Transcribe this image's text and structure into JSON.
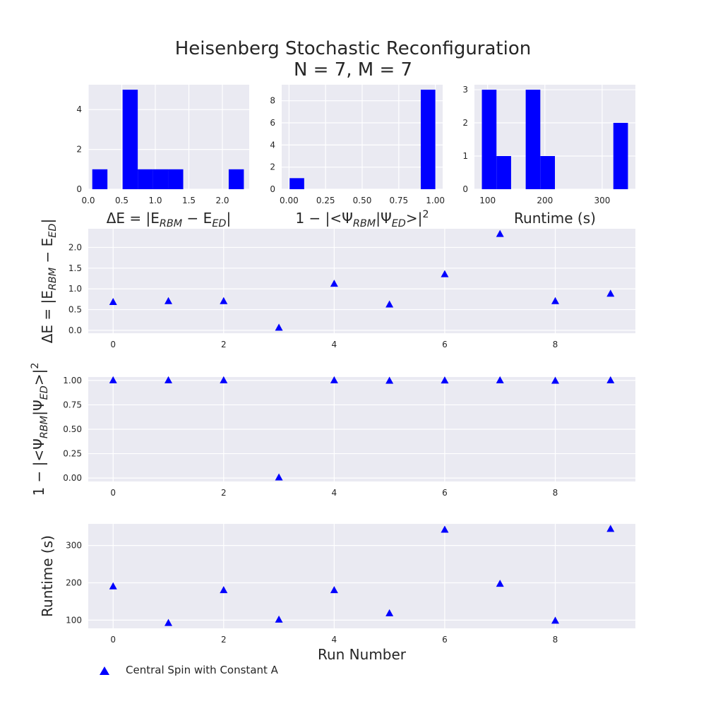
{
  "figure": {
    "title_line1": "Heisenberg Stochastic Reconfiguration",
    "title_line2": "N = 7, M = 7",
    "legend_label": "Central Spin with Constant A",
    "marker_color": "#0000ff",
    "panel_bg": "#eaeaf2"
  },
  "chart_data": [
    {
      "id": "hist-energy",
      "type": "bar",
      "xlabel": "ΔE = |E_RBM − E_ED|",
      "bin_edges": [
        0.06,
        0.286,
        0.512,
        0.738,
        0.964,
        1.19,
        1.416,
        1.642,
        1.868,
        2.094,
        2.32
      ],
      "counts": [
        1,
        0,
        5,
        1,
        1,
        1,
        0,
        0,
        0,
        1
      ],
      "xlim": [
        0.0,
        2.4
      ],
      "ylim": [
        0,
        5.25
      ],
      "xticks": [
        "0.0",
        "0.5",
        "1.0",
        "1.5",
        "2.0"
      ],
      "yticks": [
        "0",
        "2",
        "4"
      ]
    },
    {
      "id": "hist-overlap",
      "type": "bar",
      "xlabel": "1 − |<Ψ_RBM|Ψ_ED>|²",
      "bin_edges": [
        0.004,
        0.1036,
        0.2032,
        0.3028,
        0.4024,
        0.502,
        0.6016,
        0.7012,
        0.8008,
        0.9004,
        1.0
      ],
      "counts": [
        1,
        0,
        0,
        0,
        0,
        0,
        0,
        0,
        0,
        9
      ],
      "xlim": [
        -0.05,
        1.05
      ],
      "ylim": [
        0,
        9.45
      ],
      "xticks": [
        "0.00",
        "0.25",
        "0.50",
        "0.75",
        "1.00"
      ],
      "yticks": [
        "0",
        "2",
        "4",
        "6",
        "8"
      ]
    },
    {
      "id": "hist-runtime",
      "type": "bar",
      "xlabel": "Runtime (s)",
      "bin_edges": [
        90,
        115.5,
        141,
        166.5,
        192,
        217.5,
        243,
        268.5,
        294,
        319.5,
        345
      ],
      "counts": [
        3,
        1,
        0,
        3,
        1,
        0,
        0,
        0,
        0,
        2
      ],
      "xlim": [
        77,
        358
      ],
      "ylim": [
        0,
        3.15
      ],
      "xticks": [
        "100",
        "200",
        "300"
      ],
      "yticks": [
        "0",
        "1",
        "2",
        "3"
      ]
    },
    {
      "id": "scatter-energy",
      "type": "scatter",
      "series": [
        {
          "name": "Central Spin with Constant A",
          "x": [
            0,
            1,
            2,
            3,
            4,
            5,
            6,
            7,
            8,
            9
          ],
          "y": [
            0.68,
            0.7,
            0.7,
            0.06,
            1.12,
            0.62,
            1.35,
            2.32,
            0.7,
            0.88
          ]
        }
      ],
      "ylabel": "ΔE = |E_RBM − E_ED|",
      "xlim": [
        -0.45,
        9.45
      ],
      "ylim": [
        -0.07,
        2.45
      ],
      "xticks": [
        "0",
        "2",
        "4",
        "6",
        "8"
      ],
      "yticks": [
        "0.0",
        "0.5",
        "1.0",
        "1.5",
        "2.0"
      ]
    },
    {
      "id": "scatter-overlap",
      "type": "scatter",
      "series": [
        {
          "name": "Central Spin with Constant A",
          "x": [
            0,
            1,
            2,
            3,
            4,
            5,
            6,
            7,
            8,
            9
          ],
          "y": [
            1.0,
            1.0,
            1.0,
            0.005,
            1.0,
            0.995,
            0.998,
            1.0,
            0.995,
            1.0
          ]
        }
      ],
      "ylabel": "1 − |<Ψ_RBM|Ψ_ED>|²",
      "xlim": [
        -0.45,
        9.45
      ],
      "ylim": [
        -0.035,
        1.035
      ],
      "xticks": [
        "0",
        "2",
        "4",
        "6",
        "8"
      ],
      "yticks": [
        "0.00",
        "0.25",
        "0.50",
        "0.75",
        "1.00"
      ]
    },
    {
      "id": "scatter-runtime",
      "type": "scatter",
      "series": [
        {
          "name": "Central Spin with Constant A",
          "x": [
            0,
            1,
            2,
            3,
            4,
            5,
            6,
            7,
            8,
            9
          ],
          "y": [
            190,
            92,
            180,
            101,
            180,
            118,
            342,
            197,
            98,
            344
          ]
        }
      ],
      "xlabel": "Run Number",
      "ylabel": "Runtime (s)",
      "xlim": [
        -0.45,
        9.45
      ],
      "ylim": [
        78,
        358
      ],
      "xticks": [
        "0",
        "2",
        "4",
        "6",
        "8"
      ],
      "yticks": [
        "100",
        "200",
        "300"
      ]
    }
  ]
}
